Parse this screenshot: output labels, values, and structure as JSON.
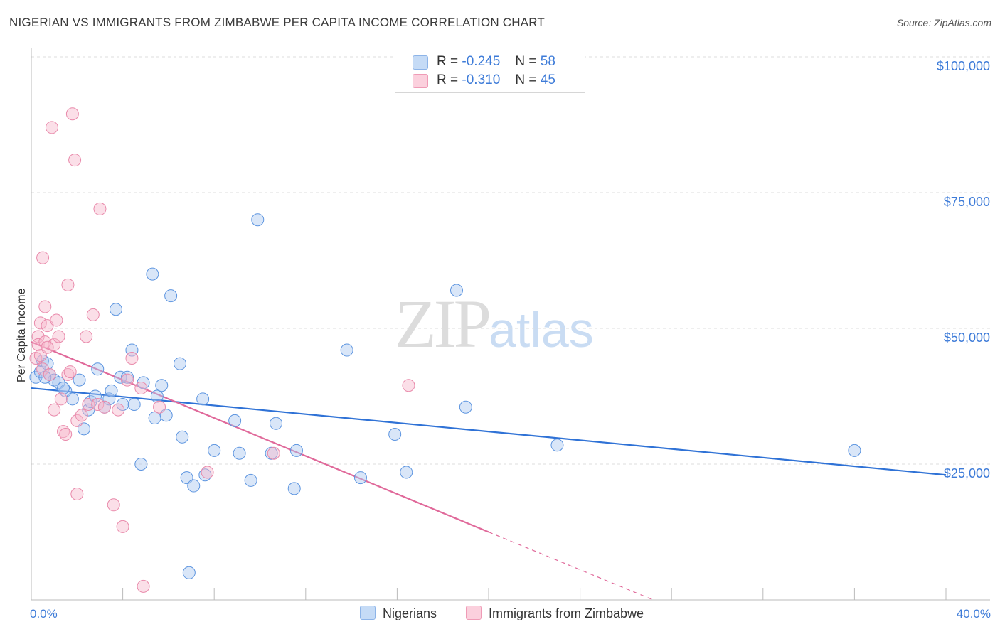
{
  "header": {
    "title": "NIGERIAN VS IMMIGRANTS FROM ZIMBABWE PER CAPITA INCOME CORRELATION CHART",
    "source": "Source: ZipAtlas.com"
  },
  "watermark": {
    "zip": "ZIP",
    "atlas": "atlas"
  },
  "legend": {
    "r_label": "R =",
    "n_label": "N =",
    "rows": [
      {
        "r": "-0.245",
        "n": "58",
        "color": "#aac8f0"
      },
      {
        "r": "-0.310",
        "n": "45",
        "color": "#f6b8cb"
      }
    ]
  },
  "bottom_legend": {
    "items": [
      {
        "label": "Nigerians",
        "color": "#aac8f0"
      },
      {
        "label": "Immigrants from Zimbabwe",
        "color": "#f6b8cb"
      }
    ]
  },
  "chart_data": {
    "type": "scatter",
    "ylabel": "Per Capita Income",
    "x_tick_labels": [
      "0.0%",
      "40.0%"
    ],
    "y_tick_labels": [
      "$100,000",
      "$75,000",
      "$50,000",
      "$25,000"
    ],
    "y_ticks": [
      100000,
      75000,
      50000,
      25000
    ],
    "xlim": [
      0,
      40
    ],
    "ylim": [
      0,
      105000
    ],
    "grid": true,
    "colors": {
      "blue": "#3d7bd8",
      "blue_fill": "#aac8f0",
      "pink": "#e0729a",
      "pink_fill": "#f6b8cb"
    },
    "series": [
      {
        "name": "Nigerians",
        "color": "#3d7bd8",
        "trend": {
          "x0": 0,
          "y0": 39000,
          "x1": 40,
          "y1": 23000,
          "dashed_from": null
        },
        "points": [
          [
            0.2,
            41000
          ],
          [
            0.4,
            42000
          ],
          [
            0.5,
            44000
          ],
          [
            0.7,
            43500
          ],
          [
            0.8,
            41500
          ],
          [
            1.0,
            40500
          ],
          [
            1.2,
            40000
          ],
          [
            1.5,
            38500
          ],
          [
            1.8,
            37000
          ],
          [
            2.1,
            40500
          ],
          [
            2.3,
            31500
          ],
          [
            2.5,
            35000
          ],
          [
            2.6,
            36500
          ],
          [
            2.8,
            37500
          ],
          [
            2.9,
            42500
          ],
          [
            3.2,
            35500
          ],
          [
            3.4,
            37000
          ],
          [
            3.5,
            38500
          ],
          [
            3.7,
            53500
          ],
          [
            3.9,
            41000
          ],
          [
            4.0,
            36000
          ],
          [
            4.2,
            41000
          ],
          [
            4.4,
            46000
          ],
          [
            4.5,
            36000
          ],
          [
            4.8,
            25000
          ],
          [
            4.9,
            40000
          ],
          [
            5.3,
            60000
          ],
          [
            5.4,
            33500
          ],
          [
            5.5,
            37500
          ],
          [
            5.7,
            39500
          ],
          [
            5.9,
            34000
          ],
          [
            6.1,
            56000
          ],
          [
            6.5,
            43500
          ],
          [
            6.6,
            30000
          ],
          [
            6.8,
            22500
          ],
          [
            6.9,
            5000
          ],
          [
            7.1,
            21000
          ],
          [
            7.5,
            37000
          ],
          [
            7.6,
            23000
          ],
          [
            8.0,
            27500
          ],
          [
            8.9,
            33000
          ],
          [
            9.1,
            27000
          ],
          [
            9.6,
            22000
          ],
          [
            9.9,
            70000
          ],
          [
            10.5,
            27000
          ],
          [
            10.7,
            32500
          ],
          [
            11.5,
            20500
          ],
          [
            11.6,
            27500
          ],
          [
            13.8,
            46000
          ],
          [
            14.4,
            22500
          ],
          [
            15.9,
            30500
          ],
          [
            16.4,
            23500
          ],
          [
            18.6,
            57000
          ],
          [
            19.0,
            35500
          ],
          [
            23.0,
            28500
          ],
          [
            36.0,
            27500
          ],
          [
            0.6,
            41000
          ],
          [
            1.4,
            39000
          ]
        ]
      },
      {
        "name": "Immigrants from Zimbabwe",
        "color": "#e0729a",
        "trend": {
          "x0": 0,
          "y0": 47500,
          "x1": 20,
          "y1": 12500,
          "dashed_to_x": 27.2,
          "dashed_to_y": 0
        },
        "points": [
          [
            0.2,
            44500
          ],
          [
            0.3,
            48500
          ],
          [
            0.3,
            47000
          ],
          [
            0.4,
            51000
          ],
          [
            0.4,
            45000
          ],
          [
            0.5,
            42500
          ],
          [
            0.5,
            63000
          ],
          [
            0.6,
            47500
          ],
          [
            0.6,
            54000
          ],
          [
            0.7,
            50500
          ],
          [
            0.8,
            41500
          ],
          [
            0.9,
            87000
          ],
          [
            1.0,
            47000
          ],
          [
            1.0,
            35000
          ],
          [
            1.1,
            51500
          ],
          [
            1.2,
            48500
          ],
          [
            1.3,
            37000
          ],
          [
            1.4,
            31000
          ],
          [
            1.5,
            30500
          ],
          [
            1.6,
            41500
          ],
          [
            1.6,
            58000
          ],
          [
            1.8,
            89500
          ],
          [
            1.9,
            81000
          ],
          [
            2.0,
            33000
          ],
          [
            2.0,
            19500
          ],
          [
            2.2,
            34000
          ],
          [
            2.4,
            48500
          ],
          [
            2.5,
            36000
          ],
          [
            2.7,
            52500
          ],
          [
            2.9,
            36000
          ],
          [
            3.0,
            72000
          ],
          [
            3.2,
            35500
          ],
          [
            3.6,
            17500
          ],
          [
            3.8,
            35000
          ],
          [
            4.0,
            13500
          ],
          [
            4.2,
            40500
          ],
          [
            4.4,
            44500
          ],
          [
            4.8,
            39000
          ],
          [
            4.9,
            2500
          ],
          [
            5.6,
            35500
          ],
          [
            7.7,
            23500
          ],
          [
            10.6,
            27000
          ],
          [
            16.5,
            39500
          ],
          [
            0.7,
            46500
          ],
          [
            1.7,
            42000
          ]
        ]
      }
    ]
  }
}
